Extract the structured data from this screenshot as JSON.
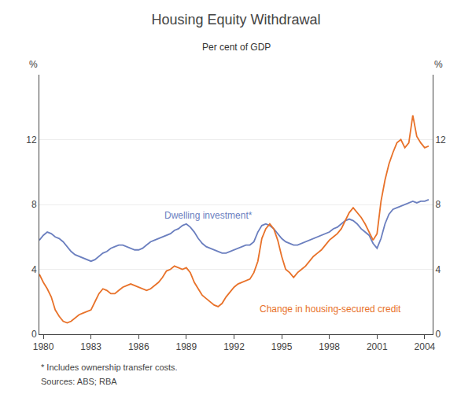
{
  "chart_data": {
    "type": "line",
    "title": "Housing Equity Withdrawal",
    "subtitle": "Per cent of GDP",
    "ylabel": "%",
    "y2label": "%",
    "footnotes": [
      "* Includes ownership transfer costs.",
      "Sources: ABS; RBA"
    ],
    "xlim": [
      1979.75,
      2004.5
    ],
    "xticks": [
      1980,
      1983,
      1986,
      1989,
      1992,
      1995,
      1998,
      2001,
      2004
    ],
    "ylim": [
      0,
      16
    ],
    "yticks": [
      0,
      4,
      8,
      12
    ],
    "y2lim": [
      0,
      16
    ],
    "y2ticks": [
      0,
      4,
      8,
      12
    ],
    "grid": true,
    "x": [
      1979.75,
      1980.0,
      1980.25,
      1980.5,
      1980.75,
      1981.0,
      1981.25,
      1981.5,
      1981.75,
      1982.0,
      1982.25,
      1982.5,
      1982.75,
      1983.0,
      1983.25,
      1983.5,
      1983.75,
      1984.0,
      1984.25,
      1984.5,
      1984.75,
      1985.0,
      1985.25,
      1985.5,
      1985.75,
      1986.0,
      1986.25,
      1986.5,
      1986.75,
      1987.0,
      1987.25,
      1987.5,
      1987.75,
      1988.0,
      1988.25,
      1988.5,
      1988.75,
      1989.0,
      1989.25,
      1989.5,
      1989.75,
      1990.0,
      1990.25,
      1990.5,
      1990.75,
      1991.0,
      1991.25,
      1991.5,
      1991.75,
      1992.0,
      1992.25,
      1992.5,
      1992.75,
      1993.0,
      1993.25,
      1993.5,
      1993.75,
      1994.0,
      1994.25,
      1994.5,
      1994.75,
      1995.0,
      1995.25,
      1995.5,
      1995.75,
      1996.0,
      1996.25,
      1996.5,
      1996.75,
      1997.0,
      1997.25,
      1997.5,
      1997.75,
      1998.0,
      1998.25,
      1998.5,
      1998.75,
      1999.0,
      1999.25,
      1999.5,
      1999.75,
      2000.0,
      2000.25,
      2000.5,
      2000.75,
      2001.0,
      2001.25,
      2001.5,
      2001.75,
      2002.0,
      2002.25,
      2002.5,
      2002.75,
      2003.0,
      2003.25,
      2003.5,
      2003.75,
      2004.0,
      2004.25
    ],
    "series": [
      {
        "color": "#6B7FBF",
        "values": [
          5.8,
          6.1,
          6.3,
          6.2,
          6.0,
          5.9,
          5.7,
          5.4,
          5.1,
          4.9,
          4.8,
          4.7,
          4.6,
          4.5,
          4.6,
          4.8,
          5.0,
          5.1,
          5.3,
          5.4,
          5.5,
          5.5,
          5.4,
          5.3,
          5.2,
          5.2,
          5.3,
          5.5,
          5.7,
          5.8,
          5.9,
          6.0,
          6.1,
          6.2,
          6.4,
          6.5,
          6.7,
          6.8,
          6.6,
          6.3,
          5.9,
          5.6,
          5.4,
          5.3,
          5.2,
          5.1,
          5.0,
          5.0,
          5.1,
          5.2,
          5.3,
          5.4,
          5.5,
          5.5,
          5.7,
          6.3,
          6.7,
          6.8,
          6.7,
          6.5,
          6.2,
          5.9,
          5.7,
          5.6,
          5.5,
          5.5,
          5.6,
          5.7,
          5.8,
          5.9,
          6.0,
          6.1,
          6.2,
          6.3,
          6.5,
          6.6,
          6.8,
          7.0,
          7.1,
          7.0,
          6.8,
          6.5,
          6.3,
          6.1,
          5.6,
          5.3,
          5.9,
          6.8,
          7.4,
          7.7,
          7.8,
          7.9,
          8.0,
          8.1,
          8.2,
          8.1,
          8.2,
          8.2,
          8.3
        ]
      },
      {
        "color": "#E8722A",
        "values": [
          3.7,
          3.2,
          2.8,
          2.3,
          1.5,
          1.1,
          0.8,
          0.7,
          0.8,
          1.0,
          1.2,
          1.3,
          1.4,
          1.5,
          2.0,
          2.5,
          2.8,
          2.7,
          2.5,
          2.5,
          2.7,
          2.9,
          3.0,
          3.1,
          3.0,
          2.9,
          2.8,
          2.7,
          2.8,
          3.0,
          3.2,
          3.5,
          3.9,
          4.0,
          4.2,
          4.1,
          4.0,
          4.1,
          3.8,
          3.2,
          2.8,
          2.4,
          2.2,
          2.0,
          1.8,
          1.7,
          1.9,
          2.3,
          2.6,
          2.9,
          3.1,
          3.2,
          3.3,
          3.4,
          3.8,
          4.5,
          5.9,
          6.5,
          6.8,
          6.5,
          5.8,
          4.8,
          4.0,
          3.8,
          3.5,
          3.8,
          4.0,
          4.2,
          4.5,
          4.8,
          5.0,
          5.2,
          5.5,
          5.8,
          6.0,
          6.2,
          6.5,
          7.0,
          7.5,
          7.8,
          7.5,
          7.2,
          6.8,
          6.3,
          5.8,
          6.2,
          8.2,
          9.5,
          10.5,
          11.2,
          11.8,
          12.0,
          11.5,
          11.8,
          13.5,
          12.2,
          11.8,
          11.5,
          11.6
        ]
      }
    ],
    "annotations": [
      {
        "text": "Dwelling investment*",
        "x": 1987.5,
        "y": 6.9,
        "color": "#6B7FBF"
      },
      {
        "text": "Change in housing-secured credit",
        "x": 1993.5,
        "y": 2.0,
        "color": "#E8722A"
      }
    ]
  }
}
